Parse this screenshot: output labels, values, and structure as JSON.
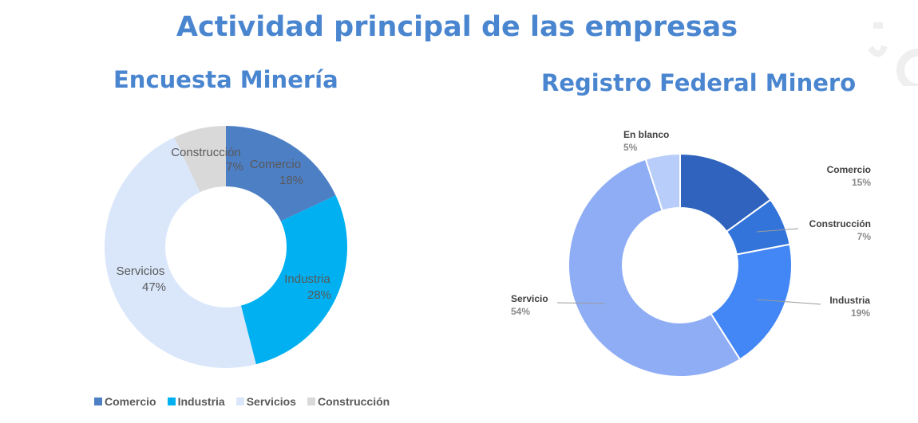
{
  "title": "Actividad principal de las empresas",
  "chart_data": [
    {
      "type": "pie",
      "style": "donut",
      "title": "Encuesta Minería",
      "categories": [
        "Comercio",
        "Industria",
        "Servicios",
        "Construcción"
      ],
      "values": [
        18,
        28,
        47,
        7
      ],
      "labels": [
        "18%",
        "28%",
        "47%",
        "7%"
      ],
      "colors": [
        "#4d7fc5",
        "#00b0f0",
        "#dae7fb",
        "#d9d9d9"
      ],
      "legend": "bottom",
      "legend_entries": [
        "Comercio",
        "Industria",
        "Servicios",
        "Construcción"
      ]
    },
    {
      "type": "pie",
      "style": "donut",
      "title": "Registro Federal Minero",
      "categories": [
        "Comercio",
        "Construcción",
        "Industria",
        "Servicio",
        "En blanco"
      ],
      "values": [
        15,
        7,
        19,
        54,
        5
      ],
      "labels": [
        "15%",
        "7%",
        "19%",
        "54%",
        "5%"
      ],
      "colors": [
        "#2f63bd",
        "#3374da",
        "#4287f5",
        "#8eadf5",
        "#b9cdfa"
      ]
    }
  ]
}
